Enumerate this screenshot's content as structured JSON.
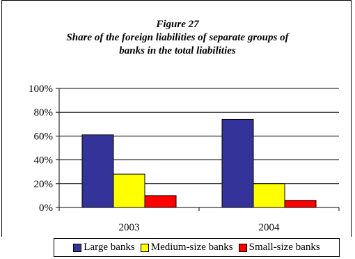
{
  "chart_data": {
    "type": "bar",
    "title_lines": [
      "Figure 27",
      "Share of the foreign liabilities of separate groups of",
      "banks in the total liabilities"
    ],
    "categories": [
      "2003",
      "2004"
    ],
    "series": [
      {
        "name": "Large banks",
        "color": "#333399",
        "values": [
          61,
          74
        ]
      },
      {
        "name": "Medium-size banks",
        "color": "#ffff00",
        "values": [
          28,
          20
        ]
      },
      {
        "name": "Small-size banks",
        "color": "#ff0000",
        "values": [
          10,
          6
        ]
      }
    ],
    "ylim": [
      0,
      100
    ],
    "yticks": [
      "0%",
      "20%",
      "40%",
      "60%",
      "80%",
      "100%"
    ],
    "legend": "bottom",
    "grid": true
  }
}
